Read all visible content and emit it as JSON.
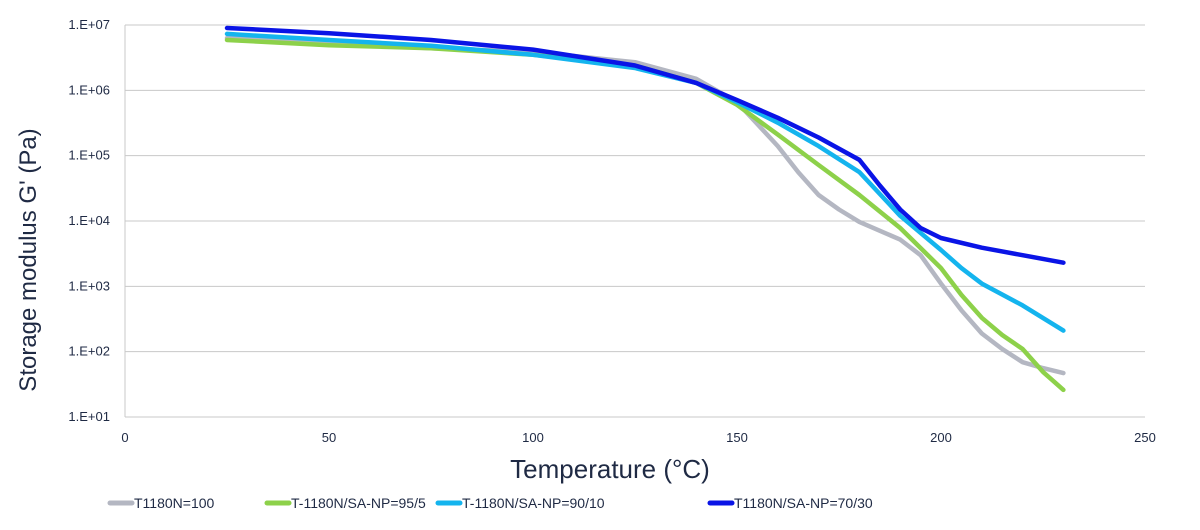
{
  "chart_data": {
    "type": "line",
    "title": "",
    "xlabel": "Temperature (°C)",
    "ylabel": "Storage modulus G'  (Pa)",
    "xlim": [
      0,
      250
    ],
    "ylim": [
      10,
      10000000
    ],
    "yscale": "log",
    "grid": "horizontal",
    "legend_position": "bottom",
    "x_ticks": [
      "0",
      "50",
      "100",
      "150",
      "200",
      "250"
    ],
    "y_ticks": [
      "1.E+01",
      "1.E+02",
      "1.E+03",
      "1.E+04",
      "1.E+05",
      "1.E+06",
      "1.E+07"
    ],
    "series": [
      {
        "name": "T1180N=100",
        "color": "#b4b7c2",
        "x": [
          25,
          50,
          75,
          100,
          125,
          140,
          150,
          160,
          165,
          170,
          175,
          180,
          190,
          195,
          200,
          205,
          210,
          215,
          220,
          225,
          230
        ],
        "y": [
          6300000,
          5300000,
          4400000,
          3900000,
          2700000,
          1500000,
          660000,
          140000,
          56000,
          25000,
          15000,
          9700,
          5200,
          3000,
          1100,
          430,
          190,
          110,
          69,
          56,
          47
        ]
      },
      {
        "name": "T-1180N/SA-NP=95/5",
        "color": "#8dd14a",
        "x": [
          25,
          50,
          75,
          100,
          125,
          140,
          150,
          160,
          170,
          180,
          190,
          200,
          205,
          210,
          215,
          220,
          225,
          230
        ],
        "y": [
          5900000,
          4900000,
          4400000,
          3500000,
          2400000,
          1300000,
          600000,
          210000,
          72000,
          25000,
          7800,
          1900,
          740,
          330,
          180,
          110,
          49,
          26
        ]
      },
      {
        "name": "T-1180N/SA-NP=90/10",
        "color": "#14b4ee",
        "x": [
          25,
          50,
          75,
          100,
          125,
          140,
          150,
          160,
          170,
          180,
          190,
          200,
          205,
          210,
          220,
          230
        ],
        "y": [
          7300000,
          5900000,
          4800000,
          3500000,
          2200000,
          1300000,
          660000,
          320000,
          140000,
          56000,
          12000,
          3600,
          1900,
          1100,
          510,
          210
        ]
      },
      {
        "name": "T1180N/SA-NP=70/30",
        "color": "#0a14e6",
        "x": [
          25,
          50,
          75,
          100,
          125,
          140,
          150,
          160,
          170,
          180,
          185,
          190,
          195,
          200,
          210,
          220,
          230
        ],
        "y": [
          9000000,
          7500000,
          5900000,
          4200000,
          2400000,
          1300000,
          710000,
          380000,
          190000,
          86000,
          35000,
          15000,
          7800,
          5500,
          3900,
          3000,
          2300
        ]
      }
    ]
  }
}
